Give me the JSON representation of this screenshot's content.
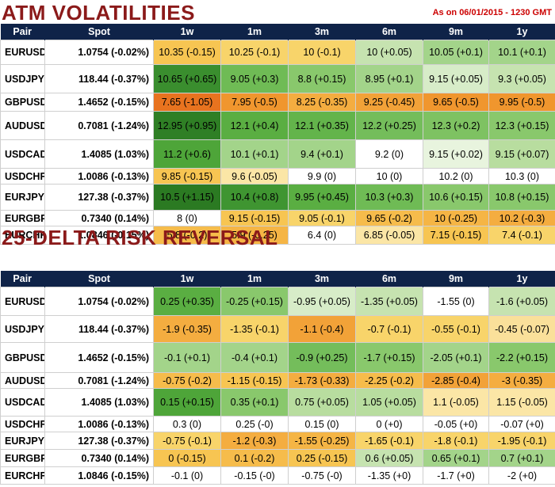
{
  "atm": {
    "title": "ATM VOLATILITIES",
    "as_of": "As on 06/01/2015 - 1230 GMT",
    "headers": [
      "Pair",
      "Spot",
      "1w",
      "1m",
      "3m",
      "6m",
      "9m",
      "1y"
    ],
    "rows": [
      {
        "pair": "EURUSD",
        "spot": "1.0754 (-0.02%)",
        "cells": [
          {
            "text": "10.35 (-0.15)",
            "color": "#f7c552"
          },
          {
            "text": "10.25 (-0.1)",
            "color": "#f8d46a"
          },
          {
            "text": "10 (-0.1)",
            "color": "#f8d46a"
          },
          {
            "text": "10 (+0.05)",
            "color": "#c6e3b0"
          },
          {
            "text": "10.05 (+0.1)",
            "color": "#a3d48a"
          },
          {
            "text": "10.1 (+0.1)",
            "color": "#a3d48a"
          }
        ]
      },
      {
        "pair": "USDJPY",
        "spot": "118.44 (-0.37%)",
        "cells": [
          {
            "text": "10.65 (+0.65)",
            "color": "#3a8e2e"
          },
          {
            "text": "9.05 (+0.3)",
            "color": "#6fbb55"
          },
          {
            "text": "8.8 (+0.15)",
            "color": "#89c86c"
          },
          {
            "text": "8.95 (+0.1)",
            "color": "#a3d48a"
          },
          {
            "text": "9.15 (+0.05)",
            "color": "#d7ecc8"
          },
          {
            "text": "9.3 (+0.05)",
            "color": "#c6e3b0"
          }
        ]
      },
      {
        "pair": "GBPUSD",
        "spot": "1.4652 (-0.15%)",
        "cells": [
          {
            "text": "7.65 (-1.05)",
            "color": "#e8731f"
          },
          {
            "text": "7.95 (-0.5)",
            "color": "#f0962e"
          },
          {
            "text": "8.25 (-0.35)",
            "color": "#f4ad40"
          },
          {
            "text": "9.25 (-0.45)",
            "color": "#f2a238"
          },
          {
            "text": "9.65 (-0.5)",
            "color": "#f0962e"
          },
          {
            "text": "9.95 (-0.5)",
            "color": "#f0962e"
          }
        ]
      },
      {
        "pair": "AUDUSD",
        "spot": "0.7081 (-1.24%)",
        "cells": [
          {
            "text": "12.95 (+0.95)",
            "color": "#2f7f25"
          },
          {
            "text": "12.1 (+0.4)",
            "color": "#5aae42"
          },
          {
            "text": "12.1 (+0.35)",
            "color": "#63b44b"
          },
          {
            "text": "12.2 (+0.25)",
            "color": "#74bd5b"
          },
          {
            "text": "12.3 (+0.2)",
            "color": "#7ec262"
          },
          {
            "text": "12.3 (+0.15)",
            "color": "#89c86c"
          }
        ]
      },
      {
        "pair": "USDCAD",
        "spot": "1.4085 (1.03%)",
        "cells": [
          {
            "text": "11.2 (+0.6)",
            "color": "#4ea539"
          },
          {
            "text": "10.1 (+0.1)",
            "color": "#a3d48a"
          },
          {
            "text": "9.4 (+0.1)",
            "color": "#a3d48a"
          },
          {
            "text": "9.2 (0)",
            "color": "#ffffff"
          },
          {
            "text": "9.15 (+0.02)",
            "color": "#e8f4de"
          },
          {
            "text": "9.15 (+0.07)",
            "color": "#b8dd9f"
          }
        ]
      },
      {
        "pair": "USDCHF",
        "spot": "1.0086 (-0.13%)",
        "cells": [
          {
            "text": "9.85 (-0.15)",
            "color": "#f7c552"
          },
          {
            "text": "9.6 (-0.05)",
            "color": "#fbe6a6"
          },
          {
            "text": "9.9 (0)",
            "color": "#ffffff"
          },
          {
            "text": "10 (0)",
            "color": "#ffffff"
          },
          {
            "text": "10.2 (0)",
            "color": "#ffffff"
          },
          {
            "text": "10.3 (0)",
            "color": "#ffffff"
          }
        ]
      },
      {
        "pair": "EURJPY",
        "spot": "127.38 (-0.37%)",
        "cells": [
          {
            "text": "10.5 (+1.15)",
            "color": "#2b7a22"
          },
          {
            "text": "10.4 (+0.8)",
            "color": "#3f9531"
          },
          {
            "text": "9.95 (+0.45)",
            "color": "#5aae42"
          },
          {
            "text": "10.3 (+0.3)",
            "color": "#6fbb55"
          },
          {
            "text": "10.6 (+0.15)",
            "color": "#89c86c"
          },
          {
            "text": "10.8 (+0.15)",
            "color": "#89c86c"
          }
        ]
      },
      {
        "pair": "EURGBP",
        "spot": "0.7340 (0.14%)",
        "cells": [
          {
            "text": "8 (0)",
            "color": "#ffffff"
          },
          {
            "text": "9.15 (-0.15)",
            "color": "#f7c552"
          },
          {
            "text": "9.05 (-0.1)",
            "color": "#f8d46a"
          },
          {
            "text": "9.65 (-0.2)",
            "color": "#f6bc4b"
          },
          {
            "text": "10 (-0.25)",
            "color": "#f5b545"
          },
          {
            "text": "10.2 (-0.3)",
            "color": "#f4ad40"
          }
        ]
      },
      {
        "pair": "EURCHF",
        "spot": "1.0846 (-0.15%)",
        "cells": [
          {
            "text": "5.8 (-0.2)",
            "color": "#f6bc4b"
          },
          {
            "text": "5.9 (-0.25)",
            "color": "#f5b545"
          },
          {
            "text": "6.4 (0)",
            "color": "#ffffff"
          },
          {
            "text": "6.85 (-0.05)",
            "color": "#fbe6a6"
          },
          {
            "text": "7.15 (-0.15)",
            "color": "#f7c552"
          },
          {
            "text": "7.4 (-0.1)",
            "color": "#f8d46a"
          }
        ]
      }
    ]
  },
  "rr": {
    "title": "25-DELTA RISK REVERSAL",
    "headers": [
      "Pair",
      "Spot",
      "1w",
      "1m",
      "3m",
      "6m",
      "9m",
      "1y"
    ],
    "rows": [
      {
        "pair": "EURUSD",
        "spot": "1.0754 (-0.02%)",
        "cells": [
          {
            "text": "0.25 (+0.35)",
            "color": "#5aae42"
          },
          {
            "text": "-0.25 (+0.15)",
            "color": "#89c86c"
          },
          {
            "text": "-0.95 (+0.05)",
            "color": "#d7ecc8"
          },
          {
            "text": "-1.35 (+0.05)",
            "color": "#c6e3b0"
          },
          {
            "text": "-1.55 (0)",
            "color": "#ffffff"
          },
          {
            "text": "-1.6 (+0.05)",
            "color": "#c6e3b0"
          }
        ]
      },
      {
        "pair": "USDJPY",
        "spot": "118.44 (-0.37%)",
        "cells": [
          {
            "text": "-1.9 (-0.35)",
            "color": "#f4ad40"
          },
          {
            "text": "-1.35 (-0.1)",
            "color": "#f8d46a"
          },
          {
            "text": "-1.1 (-0.4)",
            "color": "#f2a238"
          },
          {
            "text": "-0.7 (-0.1)",
            "color": "#f8d46a"
          },
          {
            "text": "-0.55 (-0.1)",
            "color": "#f8d46a"
          },
          {
            "text": "-0.45 (-0.07)",
            "color": "#fae09a"
          }
        ]
      },
      {
        "pair": "GBPUSD",
        "spot": "1.4652 (-0.15%)",
        "cells": [
          {
            "text": "-0.1 (+0.1)",
            "color": "#a3d48a"
          },
          {
            "text": "-0.4 (+0.1)",
            "color": "#a3d48a"
          },
          {
            "text": "-0.9 (+0.25)",
            "color": "#74bd5b"
          },
          {
            "text": "-1.7 (+0.15)",
            "color": "#89c86c"
          },
          {
            "text": "-2.05 (+0.1)",
            "color": "#a3d48a"
          },
          {
            "text": "-2.2 (+0.15)",
            "color": "#89c86c"
          }
        ]
      },
      {
        "pair": "AUDUSD",
        "spot": "0.7081 (-1.24%)",
        "cells": [
          {
            "text": "-0.75 (-0.2)",
            "color": "#f6bc4b"
          },
          {
            "text": "-1.15 (-0.15)",
            "color": "#f7c552"
          },
          {
            "text": "-1.73 (-0.33)",
            "color": "#f4ad40"
          },
          {
            "text": "-2.25 (-0.2)",
            "color": "#f6bc4b"
          },
          {
            "text": "-2.85 (-0.4)",
            "color": "#f2a238"
          },
          {
            "text": "-3 (-0.35)",
            "color": "#f4ad40"
          }
        ]
      },
      {
        "pair": "USDCAD",
        "spot": "1.4085 (1.03%)",
        "cells": [
          {
            "text": "0.15 (+0.15)",
            "color": "#4ea539"
          },
          {
            "text": "0.35 (+0.1)",
            "color": "#89c86c"
          },
          {
            "text": "0.75 (+0.05)",
            "color": "#b8dd9f"
          },
          {
            "text": "1.05 (+0.05)",
            "color": "#b8dd9f"
          },
          {
            "text": "1.1 (-0.05)",
            "color": "#fbe6a6"
          },
          {
            "text": "1.15 (-0.05)",
            "color": "#fbe6a6"
          }
        ]
      },
      {
        "pair": "USDCHF",
        "spot": "1.0086 (-0.13%)",
        "cells": [
          {
            "text": "0.3 (0)",
            "color": "#ffffff"
          },
          {
            "text": "0.25 (-0)",
            "color": "#ffffff"
          },
          {
            "text": "0.15 (0)",
            "color": "#ffffff"
          },
          {
            "text": "0 (+0)",
            "color": "#ffffff"
          },
          {
            "text": "-0.05 (+0)",
            "color": "#ffffff"
          },
          {
            "text": "-0.07 (+0)",
            "color": "#ffffff"
          }
        ]
      },
      {
        "pair": "EURJPY",
        "spot": "127.38 (-0.37%)",
        "cells": [
          {
            "text": "-0.75 (-0.1)",
            "color": "#f8d46a"
          },
          {
            "text": "-1.2 (-0.3)",
            "color": "#f4ad40"
          },
          {
            "text": "-1.55 (-0.25)",
            "color": "#f5b545"
          },
          {
            "text": "-1.65 (-0.1)",
            "color": "#f8d46a"
          },
          {
            "text": "-1.8 (-0.1)",
            "color": "#f8d46a"
          },
          {
            "text": "-1.95 (-0.1)",
            "color": "#f8d46a"
          }
        ]
      },
      {
        "pair": "EURGBP",
        "spot": "0.7340 (0.14%)",
        "cells": [
          {
            "text": "0 (-0.15)",
            "color": "#f7c552"
          },
          {
            "text": "0.1 (-0.2)",
            "color": "#f6bc4b"
          },
          {
            "text": "0.25 (-0.15)",
            "color": "#f7c552"
          },
          {
            "text": "0.6 (+0.05)",
            "color": "#c6e3b0"
          },
          {
            "text": "0.65 (+0.1)",
            "color": "#a3d48a"
          },
          {
            "text": "0.7 (+0.1)",
            "color": "#a3d48a"
          }
        ]
      },
      {
        "pair": "EURCHF",
        "spot": "1.0846 (-0.15%)",
        "cells": [
          {
            "text": "-0.1 (0)",
            "color": "#ffffff"
          },
          {
            "text": "-0.15 (-0)",
            "color": "#ffffff"
          },
          {
            "text": "-0.75 (-0)",
            "color": "#ffffff"
          },
          {
            "text": "-1.35 (+0)",
            "color": "#ffffff"
          },
          {
            "text": "-1.7 (+0)",
            "color": "#ffffff"
          },
          {
            "text": "-2 (+0)",
            "color": "#ffffff"
          }
        ]
      }
    ]
  },
  "chart_data": [
    {
      "type": "table",
      "title": "ATM VOLATILITIES",
      "columns": [
        "Pair",
        "Spot",
        "1w",
        "1m",
        "3m",
        "6m",
        "9m",
        "1y"
      ],
      "rows": [
        [
          "EURUSD",
          "1.0754 (-0.02%)",
          "10.35 (-0.15)",
          "10.25 (-0.1)",
          "10 (-0.1)",
          "10 (+0.05)",
          "10.05 (+0.1)",
          "10.1 (+0.1)"
        ],
        [
          "USDJPY",
          "118.44 (-0.37%)",
          "10.65 (+0.65)",
          "9.05 (+0.3)",
          "8.8 (+0.15)",
          "8.95 (+0.1)",
          "9.15 (+0.05)",
          "9.3 (+0.05)"
        ],
        [
          "GBPUSD",
          "1.4652 (-0.15%)",
          "7.65 (-1.05)",
          "7.95 (-0.5)",
          "8.25 (-0.35)",
          "9.25 (-0.45)",
          "9.65 (-0.5)",
          "9.95 (-0.5)"
        ],
        [
          "AUDUSD",
          "0.7081 (-1.24%)",
          "12.95 (+0.95)",
          "12.1 (+0.4)",
          "12.1 (+0.35)",
          "12.2 (+0.25)",
          "12.3 (+0.2)",
          "12.3 (+0.15)"
        ],
        [
          "USDCAD",
          "1.4085 (1.03%)",
          "11.2 (+0.6)",
          "10.1 (+0.1)",
          "9.4 (+0.1)",
          "9.2 (0)",
          "9.15 (+0.02)",
          "9.15 (+0.07)"
        ],
        [
          "USDCHF",
          "1.0086 (-0.13%)",
          "9.85 (-0.15)",
          "9.6 (-0.05)",
          "9.9 (0)",
          "10 (0)",
          "10.2 (0)",
          "10.3 (0)"
        ],
        [
          "EURJPY",
          "127.38 (-0.37%)",
          "10.5 (+1.15)",
          "10.4 (+0.8)",
          "9.95 (+0.45)",
          "10.3 (+0.3)",
          "10.6 (+0.15)",
          "10.8 (+0.15)"
        ],
        [
          "EURGBP",
          "0.7340 (0.14%)",
          "8 (0)",
          "9.15 (-0.15)",
          "9.05 (-0.1)",
          "9.65 (-0.2)",
          "10 (-0.25)",
          "10.2 (-0.3)"
        ],
        [
          "EURCHF",
          "1.0846 (-0.15%)",
          "5.8 (-0.2)",
          "5.9 (-0.25)",
          "6.4 (0)",
          "6.85 (-0.05)",
          "7.15 (-0.15)",
          "7.4 (-0.1)"
        ]
      ]
    },
    {
      "type": "table",
      "title": "25-DELTA RISK REVERSAL",
      "columns": [
        "Pair",
        "Spot",
        "1w",
        "1m",
        "3m",
        "6m",
        "9m",
        "1y"
      ],
      "rows": [
        [
          "EURUSD",
          "1.0754 (-0.02%)",
          "0.25 (+0.35)",
          "-0.25 (+0.15)",
          "-0.95 (+0.05)",
          "-1.35 (+0.05)",
          "-1.55 (0)",
          "-1.6 (+0.05)"
        ],
        [
          "USDJPY",
          "118.44 (-0.37%)",
          "-1.9 (-0.35)",
          "-1.35 (-0.1)",
          "-1.1 (-0.4)",
          "-0.7 (-0.1)",
          "-0.55 (-0.1)",
          "-0.45 (-0.07)"
        ],
        [
          "GBPUSD",
          "1.4652 (-0.15%)",
          "-0.1 (+0.1)",
          "-0.4 (+0.1)",
          "-0.9 (+0.25)",
          "-1.7 (+0.15)",
          "-2.05 (+0.1)",
          "-2.2 (+0.15)"
        ],
        [
          "AUDUSD",
          "0.7081 (-1.24%)",
          "-0.75 (-0.2)",
          "-1.15 (-0.15)",
          "-1.73 (-0.33)",
          "-2.25 (-0.2)",
          "-2.85 (-0.4)",
          "-3 (-0.35)"
        ],
        [
          "USDCAD",
          "1.4085 (1.03%)",
          "0.15 (+0.15)",
          "0.35 (+0.1)",
          "0.75 (+0.05)",
          "1.05 (+0.05)",
          "1.1 (-0.05)",
          "1.15 (-0.05)"
        ],
        [
          "USDCHF",
          "1.0086 (-0.13%)",
          "0.3 (0)",
          "0.25 (-0)",
          "0.15 (0)",
          "0 (+0)",
          "-0.05 (+0)",
          "-0.07 (+0)"
        ],
        [
          "EURJPY",
          "127.38 (-0.37%)",
          "-0.75 (-0.1)",
          "-1.2 (-0.3)",
          "-1.55 (-0.25)",
          "-1.65 (-0.1)",
          "-1.8 (-0.1)",
          "-1.95 (-0.1)"
        ],
        [
          "EURGBP",
          "0.7340 (0.14%)",
          "0 (-0.15)",
          "0.1 (-0.2)",
          "0.25 (-0.15)",
          "0.6 (+0.05)",
          "0.65 (+0.1)",
          "0.7 (+0.1)"
        ],
        [
          "EURCHF",
          "1.0846 (-0.15%)",
          "-0.1 (0)",
          "-0.15 (-0)",
          "-0.75 (-0)",
          "-1.35 (+0)",
          "-1.7 (+0)",
          "-2 (+0)"
        ]
      ]
    }
  ]
}
